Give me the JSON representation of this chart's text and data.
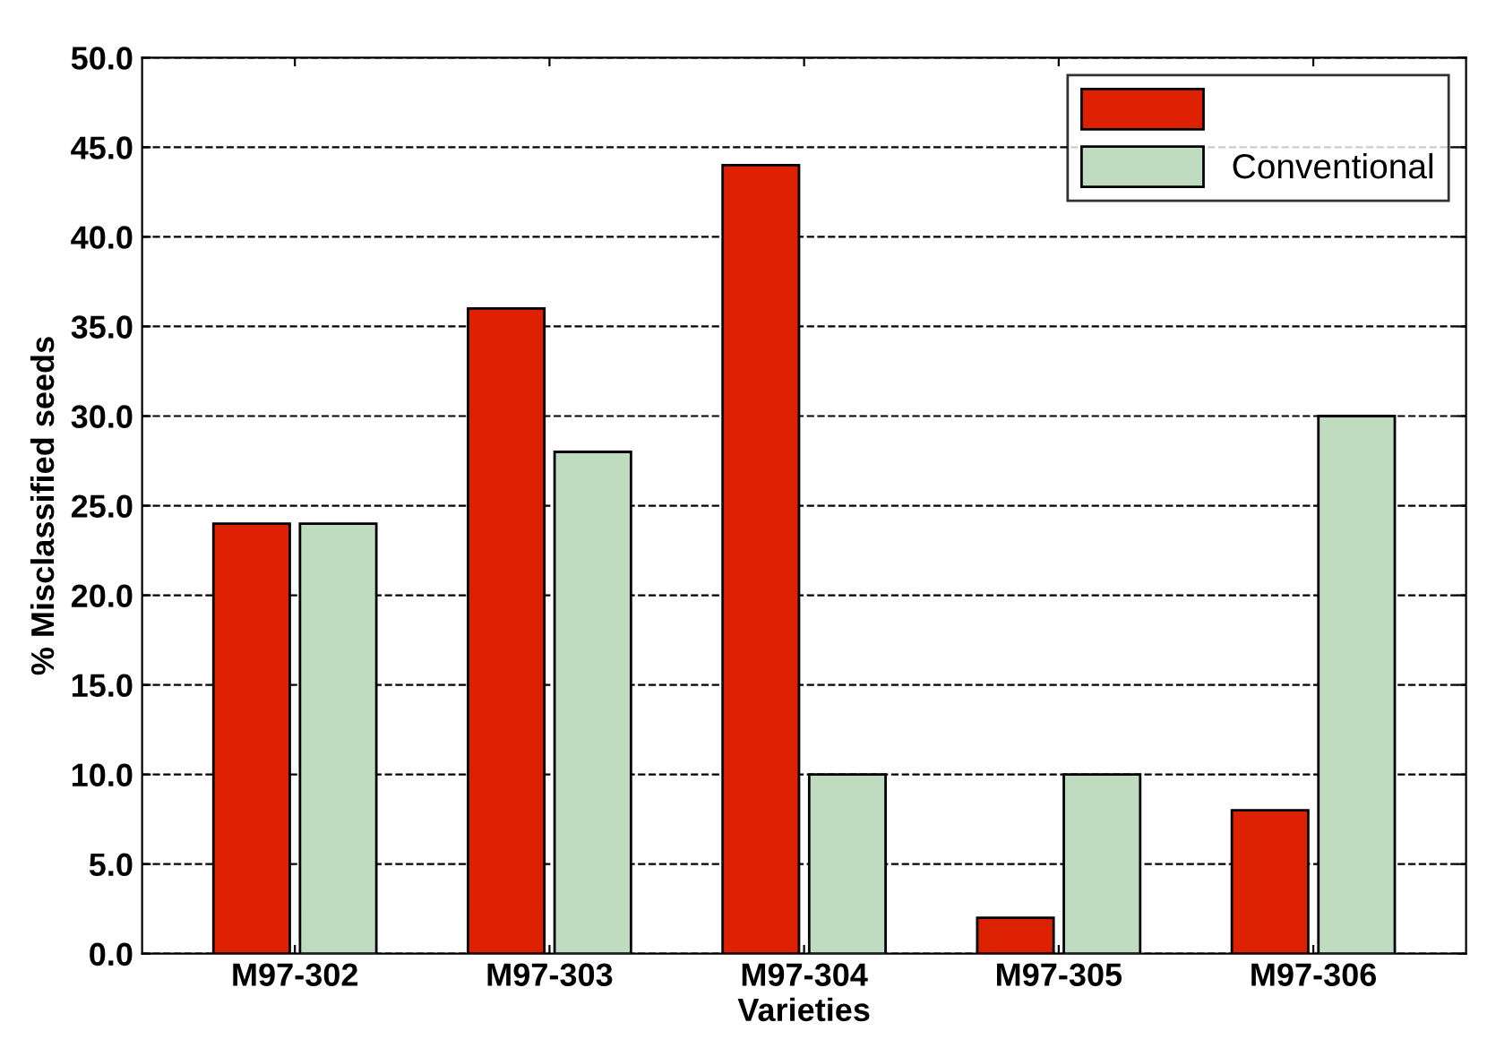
{
  "chart_data": {
    "type": "bar",
    "xlabel": "Varieties",
    "ylabel": "% Misclassified seeds",
    "categories": [
      "M97-302",
      "M97-303",
      "M97-304",
      "M97-305",
      "M97-306"
    ],
    "series": [
      {
        "color": "#dd2000",
        "values": [
          24,
          36,
          44,
          2,
          8
        ]
      },
      {
        "name": "Conventional",
        "color": "#c0dcc0",
        "values": [
          24,
          28,
          10,
          10,
          30
        ]
      }
    ],
    "ylim": [
      0,
      50
    ],
    "yticks": [
      {
        "value": 0,
        "label": "0.0"
      },
      {
        "value": 5,
        "label": "5.0"
      },
      {
        "value": 10,
        "label": "10.0"
      },
      {
        "value": 15,
        "label": "15.0"
      },
      {
        "value": 20,
        "label": "20.0"
      },
      {
        "value": 25,
        "label": "25.0"
      },
      {
        "value": 30,
        "label": "30.0"
      },
      {
        "value": 35,
        "label": "35.0"
      },
      {
        "value": 40,
        "label": "40.0"
      },
      {
        "value": 45,
        "label": "45.0"
      },
      {
        "value": 50,
        "label": "50.0"
      }
    ],
    "grid": "y",
    "legend": "top right",
    "line_style": "dashed"
  }
}
